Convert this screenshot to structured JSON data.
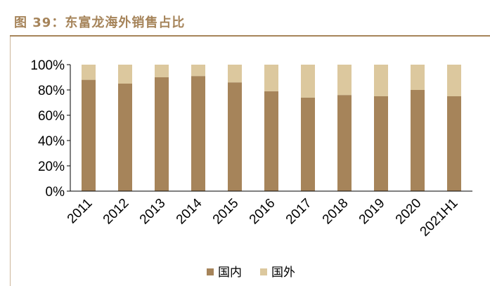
{
  "header": {
    "title": "图 39：东富龙海外销售占比"
  },
  "colors": {
    "accent": "#a6845a",
    "domestic": "#a6845a",
    "overseas": "#dcc89e"
  },
  "chart_data": {
    "type": "bar",
    "stacked": true,
    "categories": [
      "2011",
      "2012",
      "2013",
      "2014",
      "2015",
      "2016",
      "2017",
      "2018",
      "2019",
      "2020",
      "2021H1"
    ],
    "series": [
      {
        "name": "国内",
        "values": [
          88,
          85,
          90,
          91,
          86,
          79,
          74,
          76,
          75,
          80,
          75
        ]
      },
      {
        "name": "国外",
        "values": [
          12,
          15,
          10,
          9,
          14,
          21,
          26,
          24,
          25,
          20,
          25
        ]
      }
    ],
    "ylim": [
      0,
      100
    ],
    "yticks": [
      "0%",
      "20%",
      "40%",
      "60%",
      "80%",
      "100%"
    ],
    "grid": false,
    "legend": "bottom"
  }
}
